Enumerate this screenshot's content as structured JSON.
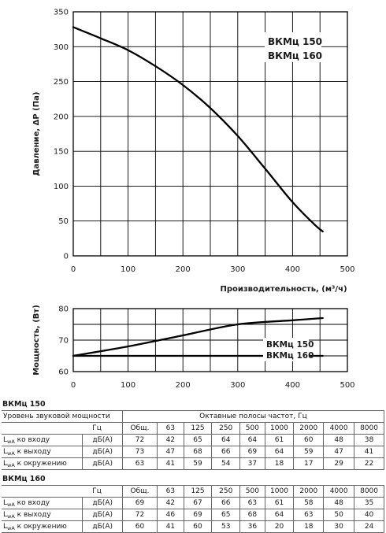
{
  "chart_data": [
    {
      "type": "line",
      "title": "",
      "xlabel": "Производительность, (м³/ч)",
      "ylabel": "Давление, ΔP (Па)",
      "xlim": [
        0,
        500
      ],
      "ylim": [
        0,
        350
      ],
      "x_ticks": [
        0,
        100,
        200,
        300,
        400,
        500
      ],
      "y_ticks": [
        0,
        50,
        100,
        150,
        200,
        250,
        300,
        350
      ],
      "grid": true,
      "legend_position": "top-right",
      "series": [
        {
          "name": "ВКМц 150 / ВКМц 160",
          "x": [
            0,
            50,
            100,
            150,
            200,
            250,
            300,
            350,
            400,
            440,
            455
          ],
          "y": [
            328,
            312,
            295,
            272,
            245,
            212,
            172,
            125,
            77,
            45,
            35
          ]
        }
      ],
      "legend": [
        "ВКМц 150",
        "ВКМц 160"
      ]
    },
    {
      "type": "line",
      "title": "",
      "xlabel": "",
      "ylabel": "Мощность, (Вт)",
      "xlim": [
        0,
        500
      ],
      "ylim": [
        60,
        80
      ],
      "x_ticks": [
        0,
        100,
        200,
        300,
        400,
        500
      ],
      "y_ticks": [
        60,
        70,
        80
      ],
      "grid": true,
      "legend_position": "right",
      "series": [
        {
          "name": "ВКМц 150",
          "x": [
            0,
            100,
            200,
            300,
            400,
            455
          ],
          "y": [
            65,
            68,
            71.5,
            75,
            76.3,
            77
          ]
        },
        {
          "name": "ВКМц 160",
          "x": [
            0,
            455
          ],
          "y": [
            65,
            65
          ]
        }
      ],
      "legend": [
        "ВКМц 150",
        "ВКМц 160"
      ]
    }
  ],
  "tables": {
    "vkm150": {
      "title": "ВКМц 150",
      "header1_left": "Уровень звуковой мощности",
      "header1_right": "Октавные полосы частот, Гц",
      "header2": [
        "Гц",
        "Общ.",
        "63",
        "125",
        "250",
        "500",
        "1000",
        "2000",
        "4000",
        "8000"
      ],
      "rows": [
        {
          "sub": "wA",
          "label": " ко входу",
          "unit": "дБ(А)",
          "values": [
            "72",
            "42",
            "65",
            "64",
            "64",
            "61",
            "60",
            "48",
            "38"
          ]
        },
        {
          "sub": "wA",
          "label": " к выходу",
          "unit": "дБ(А)",
          "values": [
            "73",
            "47",
            "68",
            "66",
            "69",
            "64",
            "59",
            "47",
            "41"
          ]
        },
        {
          "sub": "wA",
          "label": " к окружению",
          "unit": "дБ(А)",
          "values": [
            "63",
            "41",
            "59",
            "54",
            "37",
            "18",
            "17",
            "29",
            "22"
          ]
        }
      ]
    },
    "vkm160": {
      "title": "ВКМц 160",
      "header2": [
        "Гц",
        "Общ.",
        "63",
        "125",
        "250",
        "500",
        "1000",
        "2000",
        "4000",
        "8000"
      ],
      "rows": [
        {
          "sub": "wA",
          "label": " ко входу",
          "unit": "дБ(А)",
          "values": [
            "69",
            "42",
            "67",
            "66",
            "63",
            "61",
            "58",
            "48",
            "35"
          ]
        },
        {
          "sub": "wA",
          "label": " к выходу",
          "unit": "дБ(А)",
          "values": [
            "72",
            "46",
            "69",
            "65",
            "68",
            "64",
            "63",
            "50",
            "40"
          ]
        },
        {
          "sub": "wA",
          "label": " к окружению",
          "unit": "дБ(А)",
          "values": [
            "60",
            "41",
            "60",
            "53",
            "36",
            "20",
            "18",
            "30",
            "24"
          ]
        }
      ]
    },
    "L": "L"
  }
}
